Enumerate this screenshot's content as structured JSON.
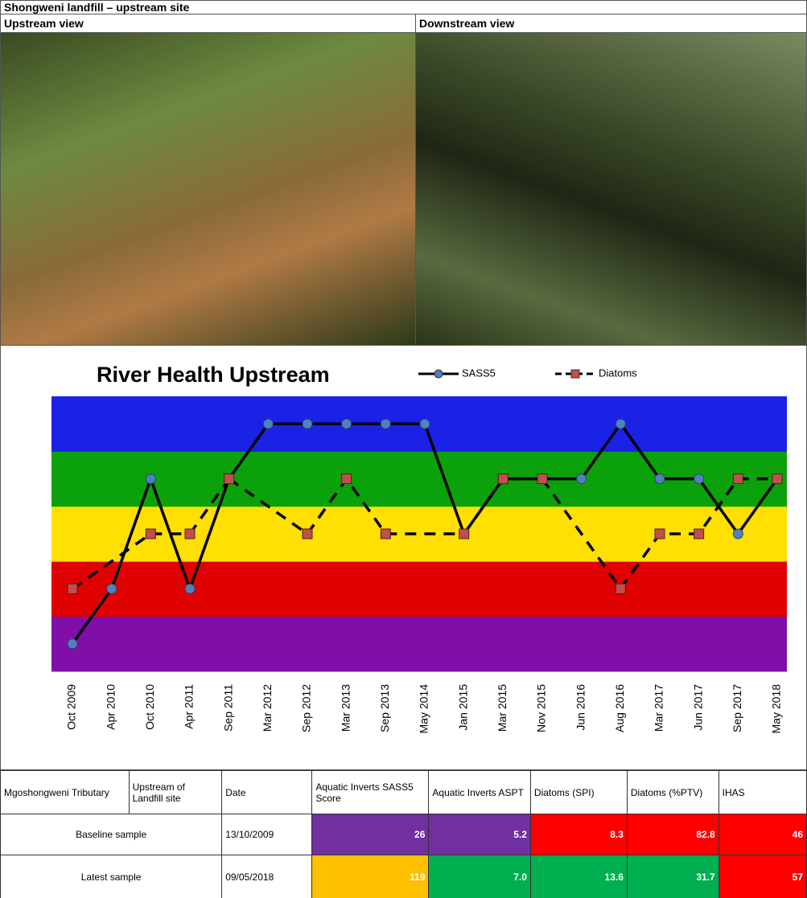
{
  "header": {
    "title": "Shongweni landfill – upstream site"
  },
  "photos": {
    "left": "Upstream view",
    "right": "Downstream view"
  },
  "chart_data": {
    "type": "line",
    "title": "River Health Upstream",
    "categories": [
      "Oct 2009",
      "Apr 2010",
      "Oct 2010",
      "Apr 2011",
      "Sep 2011",
      "Mar 2012",
      "Sep 2012",
      "Mar 2013",
      "Sep 2013",
      "May 2014",
      "Jan 2015",
      "Mar 2015",
      "Nov 2015",
      "Jun 2016",
      "Aug 2016",
      "Mar 2017",
      "Jun 2017",
      "Sep 2017",
      "May 2018"
    ],
    "series": [
      {
        "name": "SASS5",
        "color": "#4f81bd",
        "line_color": "#000000",
        "dash": false,
        "marker": "circle",
        "values": [
          0.5,
          1.5,
          3.5,
          1.5,
          3.5,
          4.5,
          4.5,
          4.5,
          4.5,
          4.5,
          2.5,
          3.5,
          3.5,
          3.5,
          4.5,
          3.5,
          3.5,
          2.5,
          3.5
        ]
      },
      {
        "name": "Diatoms",
        "color": "#c0504d",
        "line_color": "#000000",
        "dash": true,
        "marker": "square",
        "values": [
          1.5,
          null,
          2.5,
          2.5,
          3.5,
          null,
          2.5,
          3.5,
          2.5,
          null,
          2.5,
          3.5,
          3.5,
          null,
          1.5,
          2.5,
          2.5,
          3.5,
          3.5
        ]
      }
    ],
    "ylim": [
      0,
      5
    ],
    "bands": [
      "#7f0fa8",
      "#e00000",
      "#ffe000",
      "#0aa10a",
      "#1a22e6"
    ],
    "connect_gaps": true
  },
  "table": {
    "header": [
      "Mgoshongweni Tributary",
      "Upstream of Landfill site",
      "Date",
      "Aquatic Inverts SASS5 Score",
      "Aquatic Inverts ASPT",
      "Diatoms (SPI)",
      "Diatoms (%PTV)",
      "IHAS"
    ],
    "rows": [
      {
        "label": "Baseline sample",
        "date": "13/10/2009",
        "cells": [
          "26",
          "5.2",
          "8.3",
          "82.8",
          "46"
        ],
        "colors": [
          "#7030a0",
          "#7030a0",
          "#ff0000",
          "#ff0000",
          "#ff0000"
        ]
      },
      {
        "label": "Latest sample",
        "date": "09/05/2018",
        "cells": [
          "119",
          "7.0",
          "13.6",
          "31.7",
          "57"
        ],
        "colors": [
          "#ffc000",
          "#00b050",
          "#00b050",
          "#00b050",
          "#ff0000"
        ]
      }
    ]
  }
}
